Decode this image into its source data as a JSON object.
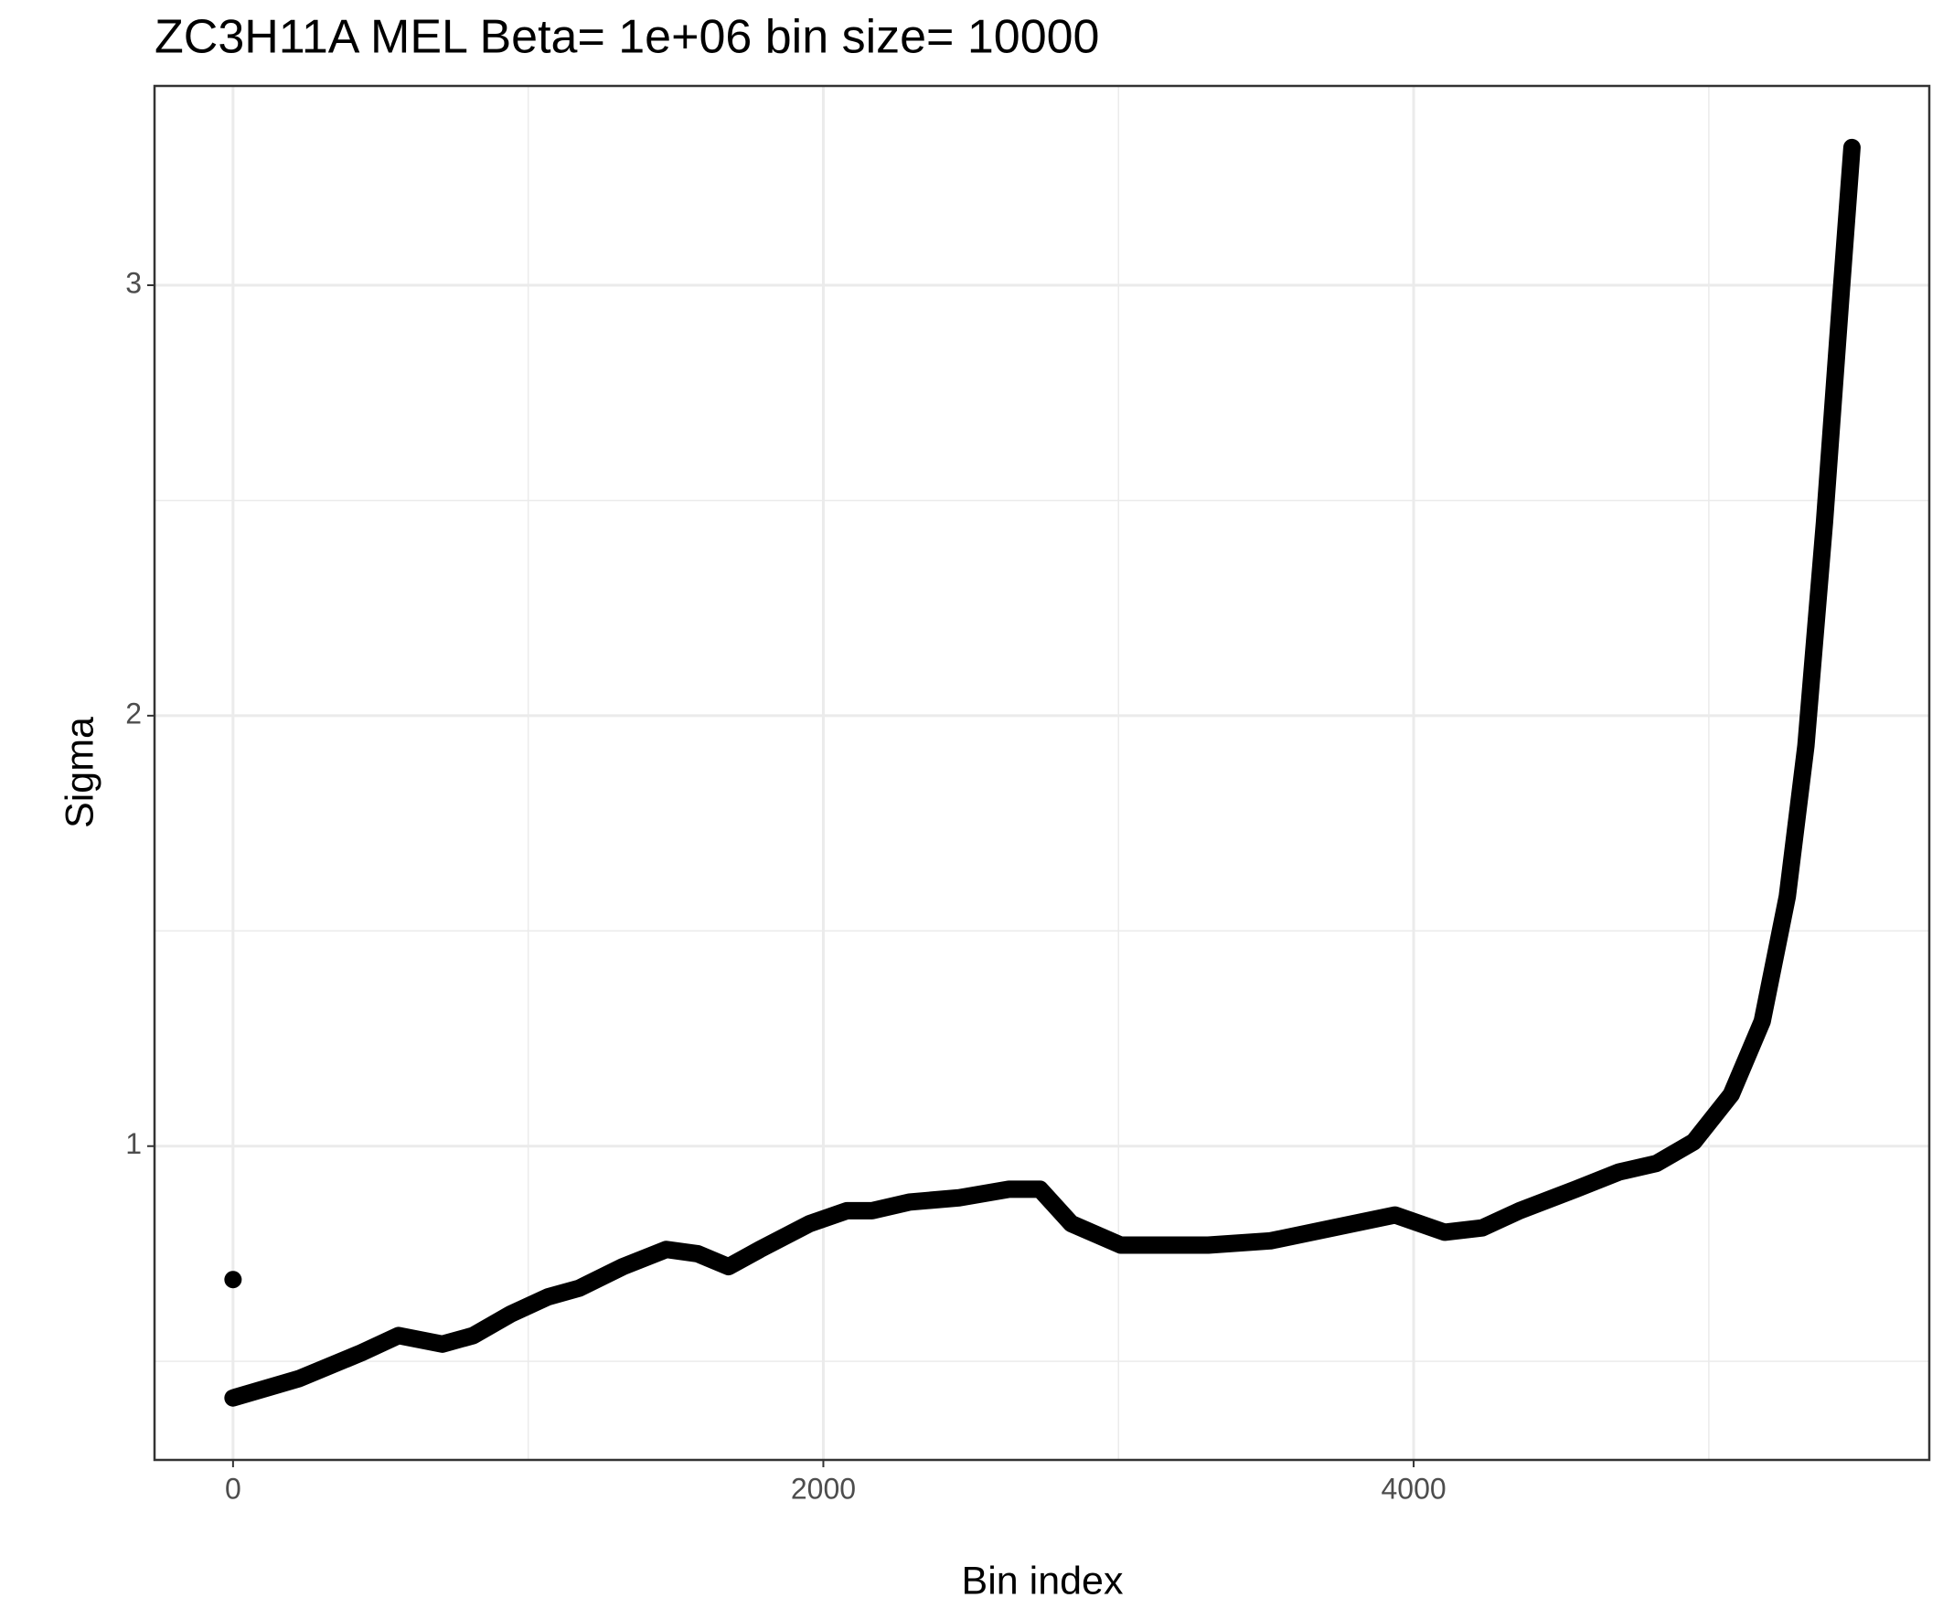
{
  "chart_data": {
    "type": "line",
    "title": "ZC3H11A MEL  Beta=  1e+06  bin size=  10000",
    "x_label": "Bin index",
    "y_label": "Sigma",
    "xlim": [
      -266,
      5747
    ],
    "ylim": [
      0.271,
      3.463
    ],
    "xticks": [
      0,
      2000,
      4000
    ],
    "yticks": [
      1,
      2,
      3
    ],
    "x_minor_grid": [
      1000,
      3000,
      5000
    ],
    "y_minor_grid": [
      0.5,
      1.5,
      2.5
    ],
    "grid": true,
    "series": [
      {
        "style": "line",
        "color": "#000000",
        "x": [
          0,
          224,
          435,
          561,
          709,
          814,
          941,
          1068,
          1173,
          1321,
          1468,
          1574,
          1679,
          1785,
          1954,
          2080,
          2165,
          2291,
          2460,
          2629,
          2734,
          2840,
          3008,
          3177,
          3304,
          3515,
          3726,
          3937,
          4105,
          4232,
          4359,
          4549,
          4696,
          4823,
          4949,
          5076,
          5181,
          5266,
          5329,
          5392,
          5447,
          5485
        ],
        "values": [
          0.415,
          0.46,
          0.52,
          0.56,
          0.54,
          0.56,
          0.61,
          0.65,
          0.67,
          0.72,
          0.76,
          0.75,
          0.72,
          0.76,
          0.82,
          0.85,
          0.85,
          0.87,
          0.88,
          0.9,
          0.9,
          0.82,
          0.77,
          0.77,
          0.77,
          0.78,
          0.81,
          0.84,
          0.8,
          0.81,
          0.85,
          0.9,
          0.94,
          0.96,
          1.01,
          1.12,
          1.29,
          1.58,
          1.93,
          2.45,
          2.97,
          3.32
        ]
      },
      {
        "style": "point",
        "color": "#000000",
        "x": [
          0
        ],
        "values": [
          0.69
        ]
      }
    ]
  }
}
